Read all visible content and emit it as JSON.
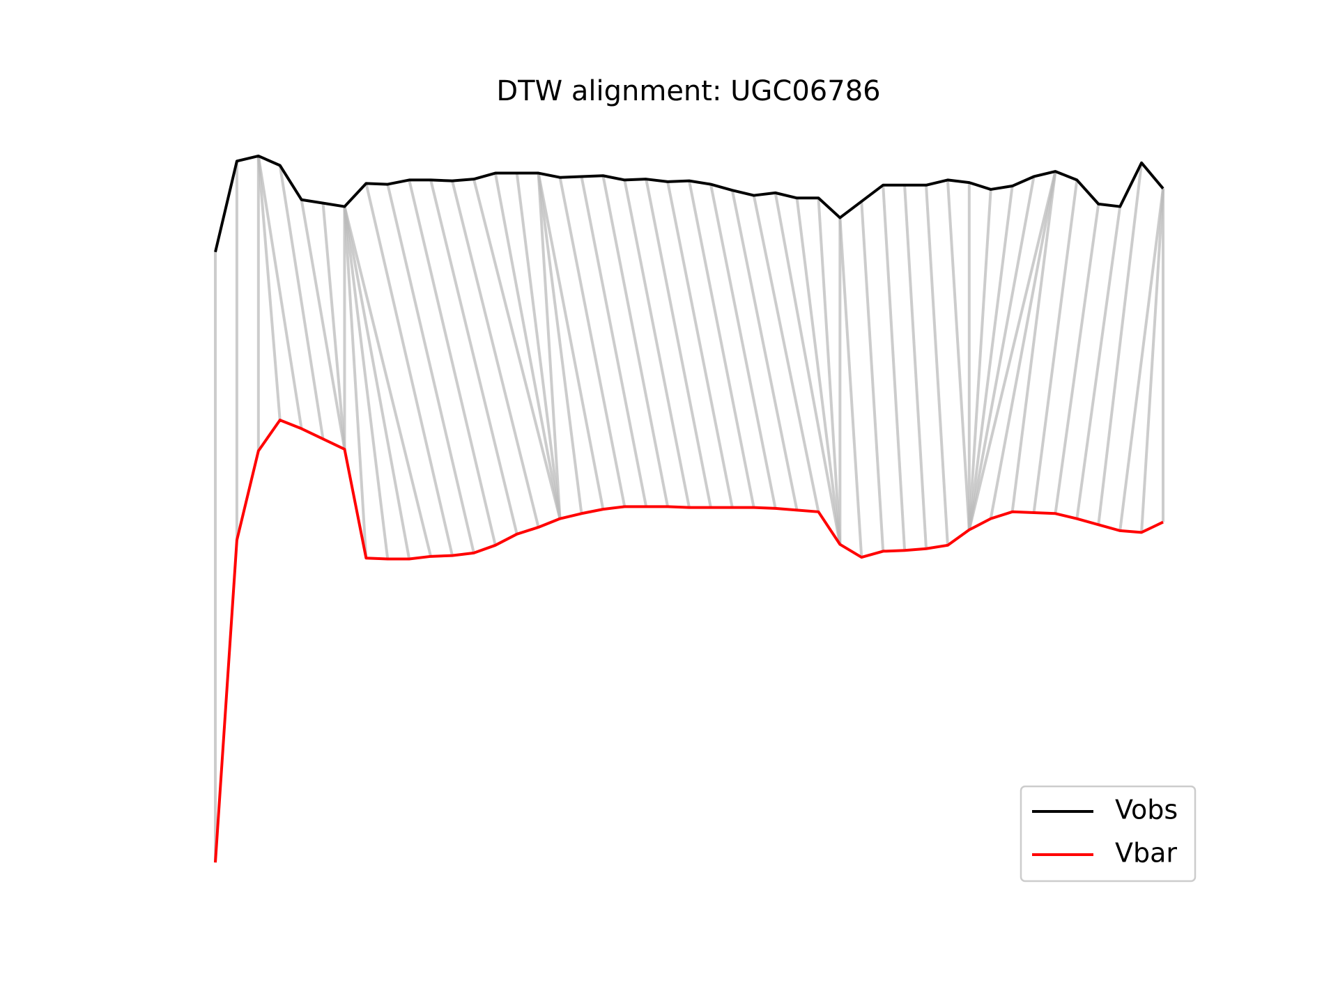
{
  "chart_data": {
    "type": "line",
    "title": "DTW alignment: UGC06786",
    "x": [
      0,
      1,
      2,
      3,
      4,
      5,
      6,
      7,
      8,
      9,
      10,
      11,
      12,
      13,
      14,
      15,
      16,
      17,
      18,
      19,
      20,
      21,
      22,
      23,
      24,
      25,
      26,
      27,
      28,
      29,
      30,
      31,
      32,
      33,
      34,
      35,
      36,
      37,
      38,
      39,
      40,
      41,
      42,
      43,
      44
    ],
    "xlim": [
      0,
      44
    ],
    "ylim": [
      0,
      100
    ],
    "series": [
      {
        "name": "Vobs",
        "color": "#000000",
        "values": [
          80.6,
          91.2,
          91.8,
          90.7,
          86.7,
          86.3,
          85.9,
          88.6,
          88.5,
          89,
          89,
          88.9,
          89.1,
          89.8,
          89.8,
          89.8,
          89.3,
          89.4,
          89.5,
          89,
          89.1,
          88.8,
          88.9,
          88.5,
          87.8,
          87.2,
          87.5,
          86.9,
          86.9,
          84.6,
          86.5,
          88.4,
          88.4,
          88.4,
          89,
          88.7,
          87.9,
          88.3,
          89.4,
          90,
          89,
          86.2,
          85.9,
          91,
          88
        ]
      },
      {
        "name": "Vbar",
        "color": "#ff0000",
        "values": [
          9.4,
          47,
          57.4,
          61,
          60,
          58.8,
          57.6,
          44.9,
          44.8,
          44.8,
          45.1,
          45.2,
          45.5,
          46.4,
          47.7,
          48.5,
          49.5,
          50.1,
          50.6,
          50.9,
          50.9,
          50.9,
          50.8,
          50.8,
          50.8,
          50.8,
          50.7,
          50.5,
          50.3,
          46.5,
          45,
          45.7,
          45.8,
          46,
          46.4,
          48.2,
          49.5,
          50.3,
          50.2,
          50.1,
          49.5,
          48.8,
          48.1,
          47.9,
          49.1
        ]
      }
    ],
    "alignment": [
      [
        0,
        0
      ],
      [
        1,
        1
      ],
      [
        2,
        2
      ],
      [
        2,
        3
      ],
      [
        2,
        4
      ],
      [
        3,
        5
      ],
      [
        4,
        6
      ],
      [
        5,
        6
      ],
      [
        6,
        6
      ],
      [
        6,
        7
      ],
      [
        6,
        8
      ],
      [
        6,
        9
      ],
      [
        6,
        10
      ],
      [
        7,
        11
      ],
      [
        8,
        12
      ],
      [
        9,
        13
      ],
      [
        10,
        14
      ],
      [
        11,
        15
      ],
      [
        12,
        16
      ],
      [
        13,
        16
      ],
      [
        14,
        16
      ],
      [
        15,
        16
      ],
      [
        15,
        17
      ],
      [
        15,
        18
      ],
      [
        16,
        19
      ],
      [
        17,
        20
      ],
      [
        18,
        21
      ],
      [
        19,
        22
      ],
      [
        20,
        23
      ],
      [
        21,
        24
      ],
      [
        22,
        25
      ],
      [
        23,
        26
      ],
      [
        24,
        27
      ],
      [
        25,
        28
      ],
      [
        26,
        29
      ],
      [
        27,
        29
      ],
      [
        28,
        29
      ],
      [
        29,
        29
      ],
      [
        29,
        30
      ],
      [
        30,
        31
      ],
      [
        31,
        32
      ],
      [
        32,
        33
      ],
      [
        33,
        34
      ],
      [
        34,
        35
      ],
      [
        35,
        35
      ],
      [
        36,
        35
      ],
      [
        37,
        35
      ],
      [
        38,
        35
      ],
      [
        39,
        35
      ],
      [
        39,
        36
      ],
      [
        39,
        37
      ],
      [
        40,
        38
      ],
      [
        41,
        39
      ],
      [
        42,
        40
      ],
      [
        43,
        41
      ],
      [
        44,
        42
      ],
      [
        44,
        43
      ],
      [
        44,
        44
      ]
    ],
    "alignment_color": "#bbbbbb",
    "legend": "lower right"
  }
}
